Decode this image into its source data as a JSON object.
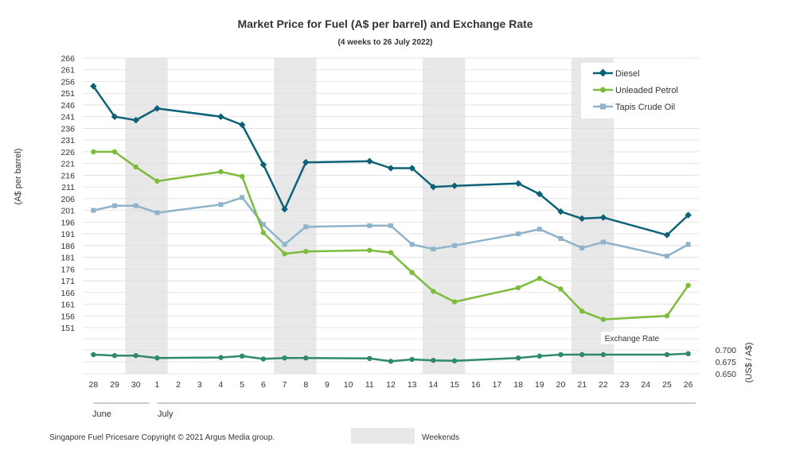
{
  "chart_data": {
    "type": "line",
    "title": "Market Price for Fuel (A$  per barrel) and Exchange Rate",
    "subtitle": "(4 weeks to 26 July 2022)",
    "ylabel": "(A$ per barrel)",
    "ylabel_right": "(US$ / A$)",
    "ylim": [
      151,
      266
    ],
    "y_ticks": [
      "266",
      "261",
      "256",
      "251",
      "246",
      "241",
      "236",
      "231",
      "226",
      "221",
      "216",
      "211",
      "206",
      "201",
      "196",
      "191",
      "186",
      "181",
      "176",
      "171",
      "166",
      "161",
      "156",
      "151"
    ],
    "y2lim": [
      0.65,
      0.7
    ],
    "y2_ticks": [
      "0.700",
      "0.675",
      "0.650"
    ],
    "x": [
      "28",
      "29",
      "30",
      "1",
      "2",
      "3",
      "4",
      "5",
      "6",
      "7",
      "8",
      "9",
      "10",
      "11",
      "12",
      "13",
      "14",
      "15",
      "16",
      "17",
      "18",
      "19",
      "20",
      "21",
      "22",
      "23",
      "24",
      "25",
      "26"
    ],
    "months": [
      {
        "label": "June",
        "start": 0
      },
      {
        "label": "July",
        "start": 3
      }
    ],
    "weekends": [
      [
        2,
        3
      ],
      [
        9,
        10
      ],
      [
        16,
        17
      ],
      [
        23,
        24
      ]
    ],
    "grid": true,
    "legend_position": "top-right",
    "series": [
      {
        "name": "Diesel",
        "color": "#0e6277",
        "marker": "diamond",
        "values": [
          254,
          241,
          239.5,
          244.5,
          null,
          null,
          241,
          237.5,
          220.5,
          201.5,
          221.5,
          null,
          null,
          222,
          219,
          219,
          211,
          211.5,
          null,
          null,
          212.5,
          208,
          200.5,
          197.5,
          198,
          null,
          null,
          190.5,
          199
        ]
      },
      {
        "name": "Unleaded Petrol",
        "color": "#7cbc3b",
        "marker": "circle",
        "values": [
          226,
          226,
          219.5,
          213.5,
          null,
          null,
          217.5,
          215.5,
          191.5,
          182.5,
          183.5,
          null,
          null,
          184,
          183,
          174.5,
          166.5,
          162,
          null,
          null,
          168,
          172,
          167.5,
          158,
          154.5,
          null,
          null,
          156,
          169
        ]
      },
      {
        "name": "Tapis Crude Oil",
        "color": "#8fb3c9",
        "marker": "square",
        "values": [
          201,
          203,
          203,
          200,
          null,
          null,
          203.5,
          206.5,
          195,
          186.5,
          194,
          null,
          null,
          194.5,
          194.5,
          186.5,
          184.5,
          186,
          null,
          null,
          191,
          193,
          189,
          185,
          187.5,
          null,
          null,
          181.5,
          186.5
        ]
      }
    ],
    "exchange_rate": {
      "name": "Exchange Rate",
      "color": "#2e8b66",
      "marker": "circle",
      "values": [
        0.69,
        0.688,
        0.688,
        0.683,
        null,
        null,
        0.684,
        0.687,
        0.681,
        0.683,
        0.683,
        null,
        null,
        0.682,
        0.676,
        0.68,
        0.678,
        0.677,
        null,
        null,
        0.683,
        0.687,
        0.69,
        0.69,
        0.69,
        null,
        null,
        0.69,
        0.692
      ]
    }
  },
  "legend": {
    "weekends_label": "Weekends"
  },
  "footer": {
    "source": "Singapore Fuel Pricesare Copyright © 2021 Argus Media group."
  }
}
